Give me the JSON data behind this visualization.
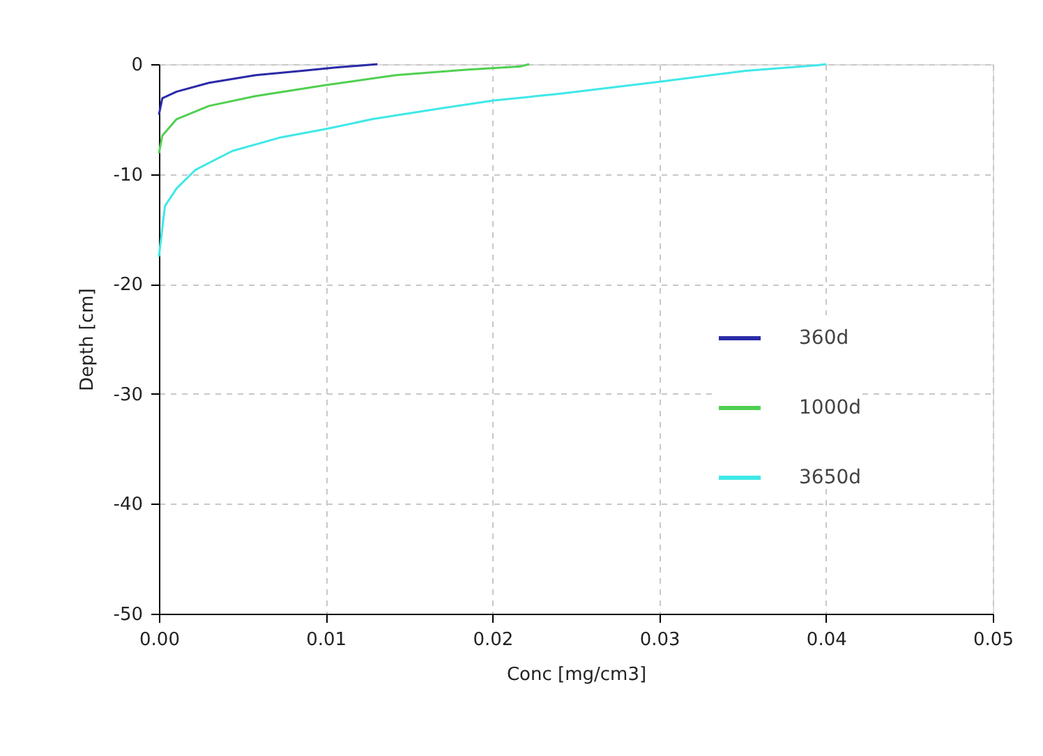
{
  "chart_data": {
    "type": "line",
    "xlabel": "Conc [mg/cm3]",
    "ylabel": "Depth [cm]",
    "xlim": [
      0,
      0.05
    ],
    "xticks": [
      {
        "value": 0,
        "label": "0.00"
      },
      0.01,
      0.02,
      0.03,
      0.04,
      0.05
    ],
    "ylim": [
      -50,
      0
    ],
    "yticks": [
      -50,
      -40,
      -30,
      -20,
      -10,
      0
    ],
    "grid": true,
    "legend": "right",
    "line_style": "solid",
    "marker": "none",
    "series": [
      {
        "name": "360d",
        "color": "#2a2aa8",
        "x": [
          0,
          0.0002,
          0.00106,
          0.003,
          0.0058,
          0.0086,
          0.0106,
          0.0131
        ],
        "values": [
          -4.6,
          -3.1,
          -2.5,
          -1.7,
          -1.0,
          -0.6,
          -0.3,
          0
        ]
      },
      {
        "name": "1000d",
        "color": "#50d050",
        "x": [
          0,
          0.0002,
          0.00106,
          0.003,
          0.0058,
          0.01,
          0.0142,
          0.0184,
          0.0217,
          0.0222
        ],
        "values": [
          -8.1,
          -6.5,
          -5.0,
          -3.8,
          -2.9,
          -1.9,
          -1.0,
          -0.5,
          -0.2,
          0
        ]
      },
      {
        "name": "3650d",
        "color": "#40e8e8",
        "x": [
          0,
          0.00036,
          0.00106,
          0.0022,
          0.0044,
          0.0072,
          0.01,
          0.0128,
          0.017,
          0.0201,
          0.024,
          0.03,
          0.0352,
          0.0395,
          0.04
        ],
        "values": [
          -17.5,
          -12.9,
          -11.3,
          -9.6,
          -7.9,
          -6.7,
          -5.9,
          -5.0,
          -4.0,
          -3.3,
          -2.7,
          -1.6,
          -0.6,
          -0.1,
          0
        ]
      }
    ]
  }
}
